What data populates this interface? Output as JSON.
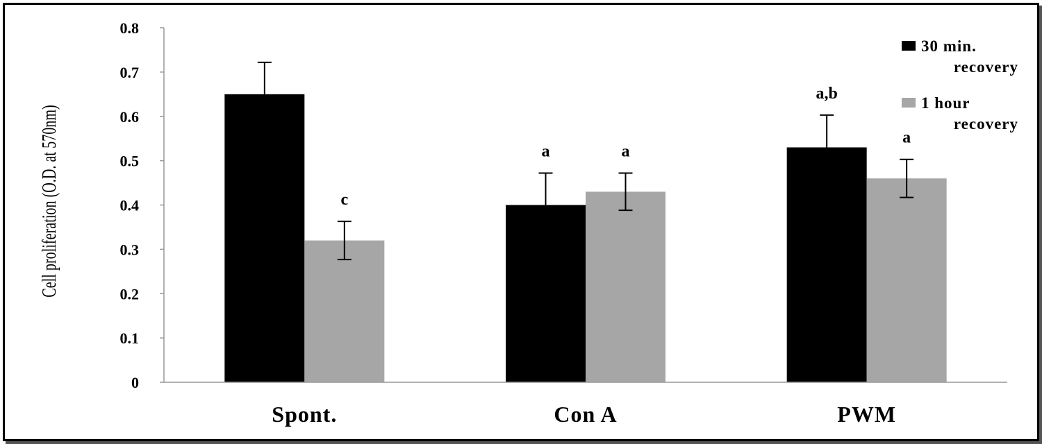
{
  "chart_data": {
    "type": "bar",
    "title": "",
    "ylabel": "Cell proliferation (O.D. at 570nm)",
    "xlabel": "",
    "categories": [
      "Spont.",
      "Con A",
      "PWM"
    ],
    "ylim": [
      0,
      0.8
    ],
    "yticks": [
      "0",
      "0.1",
      "0.2",
      "0.3",
      "0.4",
      "0.5",
      "0.6",
      "0.7",
      "0.8"
    ],
    "series": [
      {
        "name": "30 min. recovery",
        "legend_lines": [
          "30 min.",
          "recovery"
        ],
        "color": "#000000",
        "values": [
          0.65,
          0.4,
          0.53
        ],
        "errors": [
          0.072,
          0.072,
          0.073
        ],
        "annotations": [
          "",
          "a",
          "a,b"
        ]
      },
      {
        "name": "1 hour recovery",
        "legend_lines": [
          "1 hour",
          "recovery"
        ],
        "color": "#a6a6a6",
        "values": [
          0.32,
          0.43,
          0.46
        ],
        "errors": [
          0.043,
          0.042,
          0.043
        ],
        "annotations": [
          "c",
          "a",
          "a"
        ]
      }
    ],
    "legend_position": "top-right",
    "grid": false
  }
}
